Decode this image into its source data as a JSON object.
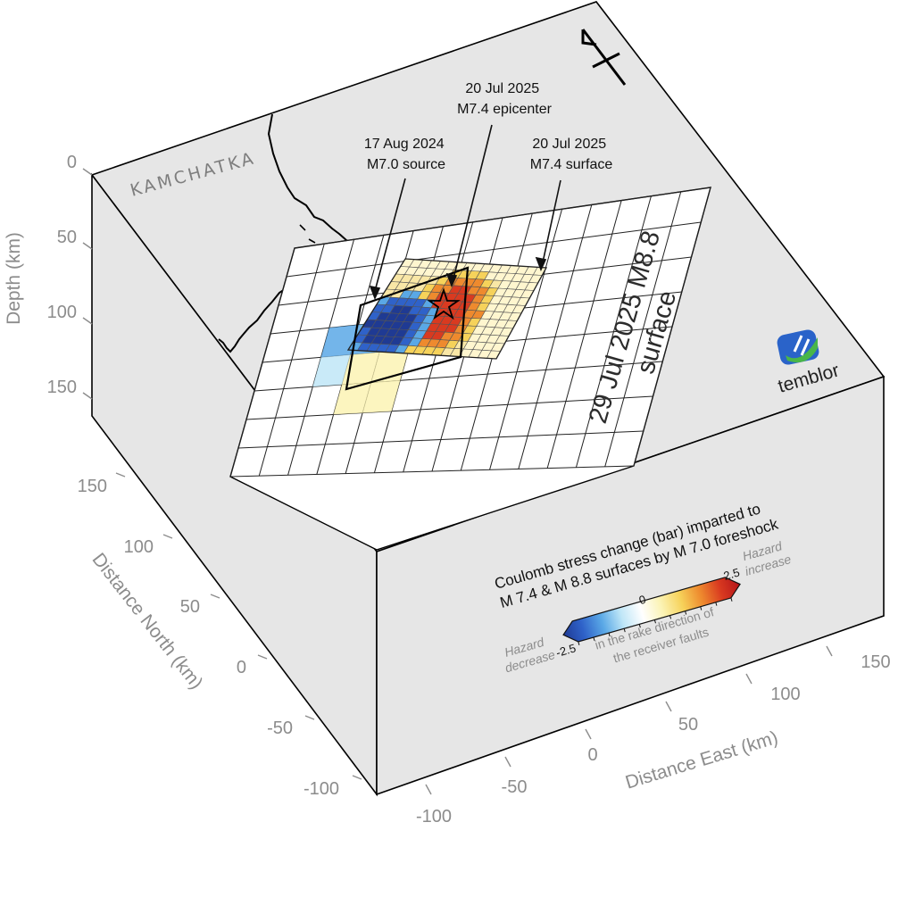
{
  "region_label": "KAMCHATKA",
  "depth_axis": {
    "label": "Depth (km)",
    "ticks": [
      "0",
      "50",
      "100",
      "150"
    ]
  },
  "north_axis": {
    "label": "Distance North (km)",
    "ticks": [
      "150",
      "100",
      "50",
      "0",
      "-50",
      "-100"
    ]
  },
  "east_axis": {
    "label": "Distance East (km)",
    "ticks": [
      "-100",
      "-50",
      "0",
      "50",
      "100",
      "150"
    ]
  },
  "annotations": {
    "foreshock_source": [
      "17 Aug 2024",
      "M7.0 source"
    ],
    "epicenter": [
      "20 Jul 2025",
      "M7.4 epicenter"
    ],
    "m74_surface": [
      "20 Jul 2025",
      "M7.4 surface"
    ],
    "m88_surface": [
      "29 Jul 2025 M8.8",
      "surface"
    ]
  },
  "legend": {
    "title": [
      "Coulomb stress change (bar) imparted to",
      "M 7.4 & M 8.8 surfaces by M 7.0 foreshock"
    ],
    "min_label": "-2.5",
    "mid_label": "0",
    "max_label": "2.5",
    "decrease_label": [
      "Hazard",
      "decrease"
    ],
    "increase_label": [
      "Hazard",
      "increase"
    ],
    "note": [
      "in the rake direction of",
      "the receiver faults"
    ],
    "colors": [
      "#1f3a93",
      "#2f62c9",
      "#5aa8e6",
      "#bfe6f7",
      "#ffffff",
      "#fbf3b4",
      "#f6d25a",
      "#ee8a2e",
      "#d93a20",
      "#b3141a"
    ]
  },
  "brand": {
    "name": "temblor",
    "colors": [
      "#2a63c9",
      "#49b649"
    ]
  }
}
